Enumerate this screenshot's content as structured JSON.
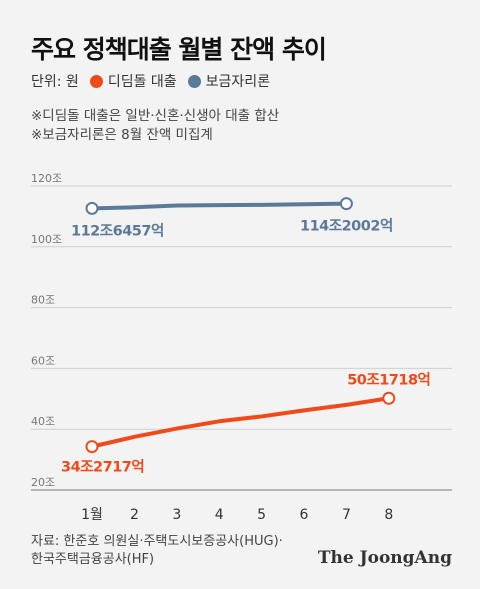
{
  "title": "주요 정책대출 월별 잔액 추이",
  "legend": {
    "unit": "단위: 원",
    "items": [
      {
        "label": "디딤돌 대출",
        "color": "#f04a1a"
      },
      {
        "label": "보금자리론",
        "color": "#5b7a99"
      }
    ]
  },
  "notes": [
    "※디딤돌 대출은 일반·신혼·신생아 대출 합산",
    "※보금자리론은 8월 잔액 미집계"
  ],
  "chart_data": {
    "type": "line",
    "categories": [
      "1월",
      "2",
      "3",
      "4",
      "5",
      "6",
      "7",
      "8"
    ],
    "ylim": [
      20,
      120
    ],
    "yticks": [
      "120조",
      "100조",
      "80조",
      "60조",
      "40조",
      "20조"
    ],
    "grid": true,
    "series": [
      {
        "name": "보금자리론",
        "color": "#5b7a99",
        "values": [
          112.6457,
          113.0,
          113.6,
          113.7,
          113.8,
          114.0,
          114.2002,
          null
        ],
        "labels": [
          {
            "index": 0,
            "text": "112조6457억"
          },
          {
            "index": 6,
            "text": "114조2002억"
          }
        ]
      },
      {
        "name": "디딤돌 대출",
        "color": "#f04a1a",
        "values": [
          34.2717,
          37.5,
          40.2,
          42.6,
          44.2,
          46.2,
          48.0,
          50.1718
        ],
        "labels": [
          {
            "index": 0,
            "text": "34조2717억"
          },
          {
            "index": 7,
            "text": "50조1718억"
          }
        ]
      }
    ]
  },
  "source": [
    "자료: 한준호 의원실·주택도시보증공사(HUG)·",
    "한국주택금융공사(HF)"
  ],
  "brand": "The JoongAng"
}
